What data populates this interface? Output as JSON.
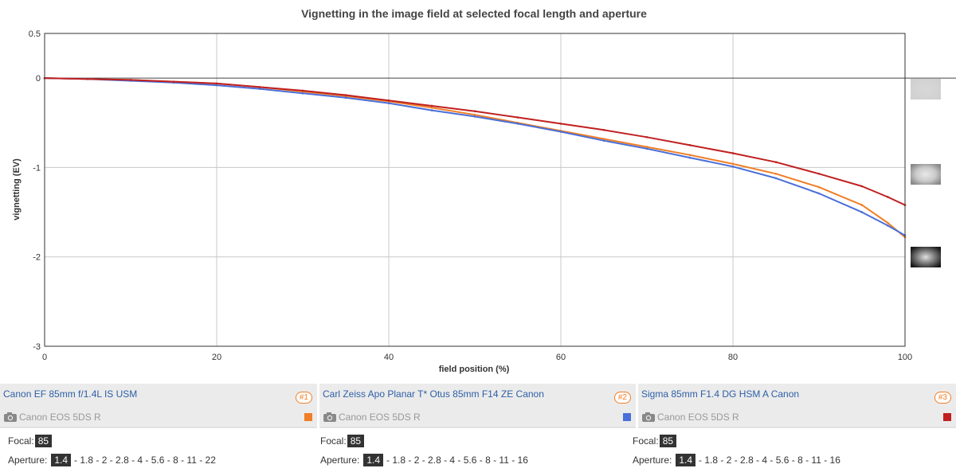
{
  "chart_data": {
    "type": "line",
    "title": "Vignetting in the image field at selected focal length and aperture",
    "xlabel": "field position (%)",
    "ylabel": "vignetting (EV)",
    "xlim": [
      0,
      100
    ],
    "ylim": [
      -3,
      0.5
    ],
    "xticks": [
      0,
      20,
      40,
      60,
      80,
      100
    ],
    "yticks": [
      0.5,
      0,
      -1,
      -2,
      -3
    ],
    "ytick_labels": [
      "0.5",
      "0",
      "-1",
      "-2",
      "-3"
    ],
    "grid": true,
    "legend": "none",
    "series": [
      {
        "color": "#f07e26",
        "x": [
          0,
          5,
          10,
          15,
          20,
          25,
          30,
          35,
          40,
          45,
          50,
          55,
          60,
          65,
          70,
          75,
          80,
          85,
          90,
          95,
          98,
          100
        ],
        "y": [
          0,
          -0.01,
          -0.02,
          -0.04,
          -0.06,
          -0.1,
          -0.15,
          -0.2,
          -0.26,
          -0.33,
          -0.41,
          -0.5,
          -0.59,
          -0.68,
          -0.77,
          -0.86,
          -0.96,
          -1.07,
          -1.22,
          -1.42,
          -1.62,
          -1.78
        ]
      },
      {
        "color": "#4a6fd8",
        "x": [
          0,
          5,
          10,
          15,
          20,
          25,
          30,
          35,
          40,
          45,
          50,
          55,
          60,
          65,
          70,
          75,
          80,
          85,
          90,
          95,
          98,
          100
        ],
        "y": [
          0,
          -0.01,
          -0.03,
          -0.05,
          -0.08,
          -0.12,
          -0.17,
          -0.22,
          -0.28,
          -0.36,
          -0.43,
          -0.51,
          -0.6,
          -0.7,
          -0.79,
          -0.89,
          -0.99,
          -1.12,
          -1.29,
          -1.5,
          -1.65,
          -1.76
        ]
      },
      {
        "color": "#c02020",
        "x": [
          0,
          5,
          10,
          15,
          20,
          25,
          30,
          35,
          40,
          45,
          50,
          55,
          60,
          65,
          70,
          75,
          80,
          85,
          90,
          95,
          98,
          100
        ],
        "y": [
          0,
          -0.01,
          -0.02,
          -0.04,
          -0.06,
          -0.1,
          -0.14,
          -0.19,
          -0.25,
          -0.31,
          -0.37,
          -0.44,
          -0.51,
          -0.58,
          -0.66,
          -0.75,
          -0.84,
          -0.94,
          -1.07,
          -1.21,
          -1.33,
          -1.42
        ]
      }
    ],
    "preview_icons": [
      "light-vignette-preview-icon",
      "medium-vignette-preview-icon",
      "strong-vignette-preview-icon"
    ]
  },
  "lenses": [
    {
      "name": "Canon EF 85mm f/1.4L IS USM",
      "badge": "#1",
      "camera": "Canon EOS 5DS R",
      "color": "#f07e26",
      "focal_label": "Focal:",
      "focal": "85",
      "aperture_label": "Aperture:",
      "aperture": "1.4",
      "aperture_rest": "- 1.8 - 2 - 2.8 - 4 - 5.6 - 8 - 11 - 22"
    },
    {
      "name": "Carl Zeiss Apo Planar T* Otus 85mm F14 ZE Canon",
      "badge": "#2",
      "camera": "Canon EOS 5DS R",
      "color": "#4a6fd8",
      "focal_label": "Focal:",
      "focal": "85",
      "aperture_label": "Aperture:",
      "aperture": "1.4",
      "aperture_rest": "- 1.8 - 2 - 2.8 - 4 - 5.6 - 8 - 11 - 16"
    },
    {
      "name": "Sigma 85mm F1.4 DG HSM A Canon",
      "badge": "#3",
      "camera": "Canon EOS 5DS R",
      "color": "#c02020",
      "focal_label": "Focal:",
      "focal": "85",
      "aperture_label": "Aperture:",
      "aperture": "1.4",
      "aperture_rest": "- 1.8 - 2 - 2.8 - 4 - 5.6 - 8 - 11 - 16"
    }
  ]
}
